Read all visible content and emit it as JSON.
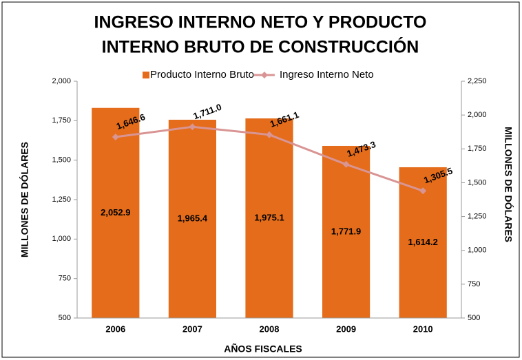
{
  "chart_data": {
    "type": "combo",
    "title": [
      "INGRESO INTERNO NETO Y PRODUCTO",
      "INTERNO BRUTO DE CONSTRUCCIÓN"
    ],
    "xlabel": "AÑOS FISCALES",
    "ylabel": "MILLONES DE DÓLARES",
    "y2label": "MILLONES DE DÓLARES",
    "categories": [
      "2006",
      "2007",
      "2008",
      "2009",
      "2010"
    ],
    "series": [
      {
        "name": "Producto Interno Bruto",
        "type": "bar",
        "axis": "y2",
        "color": "#e46c1a",
        "values": [
          2052.9,
          1965.4,
          1975.1,
          1771.9,
          1614.2
        ],
        "value_labels": [
          "2,052.9",
          "1,965.4",
          "1,975.1",
          "1,771.9",
          "1,614.2"
        ]
      },
      {
        "name": "Ingreso Interno Neto",
        "type": "line",
        "axis": "y",
        "color": "#d99594",
        "values": [
          1646.6,
          1711.0,
          1661.1,
          1473.3,
          1305.5
        ],
        "value_labels": [
          "1,646.6",
          "1,711.0",
          "1,661.1",
          "1,473.3",
          "1,305.5"
        ]
      }
    ],
    "ylim": [
      500,
      2000
    ],
    "yticks": [
      500,
      750,
      {
        "value": 1000,
        "label": "1,000"
      },
      {
        "value": 1250,
        "label": "1,250"
      },
      {
        "value": 1500,
        "label": "1,500"
      },
      {
        "value": 1750,
        "label": "1,750"
      },
      {
        "value": 2000,
        "label": "2,000"
      }
    ],
    "y2lim": [
      500,
      2250
    ],
    "y2ticks": [
      500,
      750,
      {
        "value": 1000,
        "label": "1,000"
      },
      {
        "value": 1250,
        "label": "1,250"
      },
      {
        "value": 1500,
        "label": "1,500"
      },
      {
        "value": 1750,
        "label": "1,750"
      },
      {
        "value": 2000,
        "label": "2,000"
      },
      {
        "value": 2250,
        "label": "2,250"
      }
    ],
    "legend": "top"
  }
}
